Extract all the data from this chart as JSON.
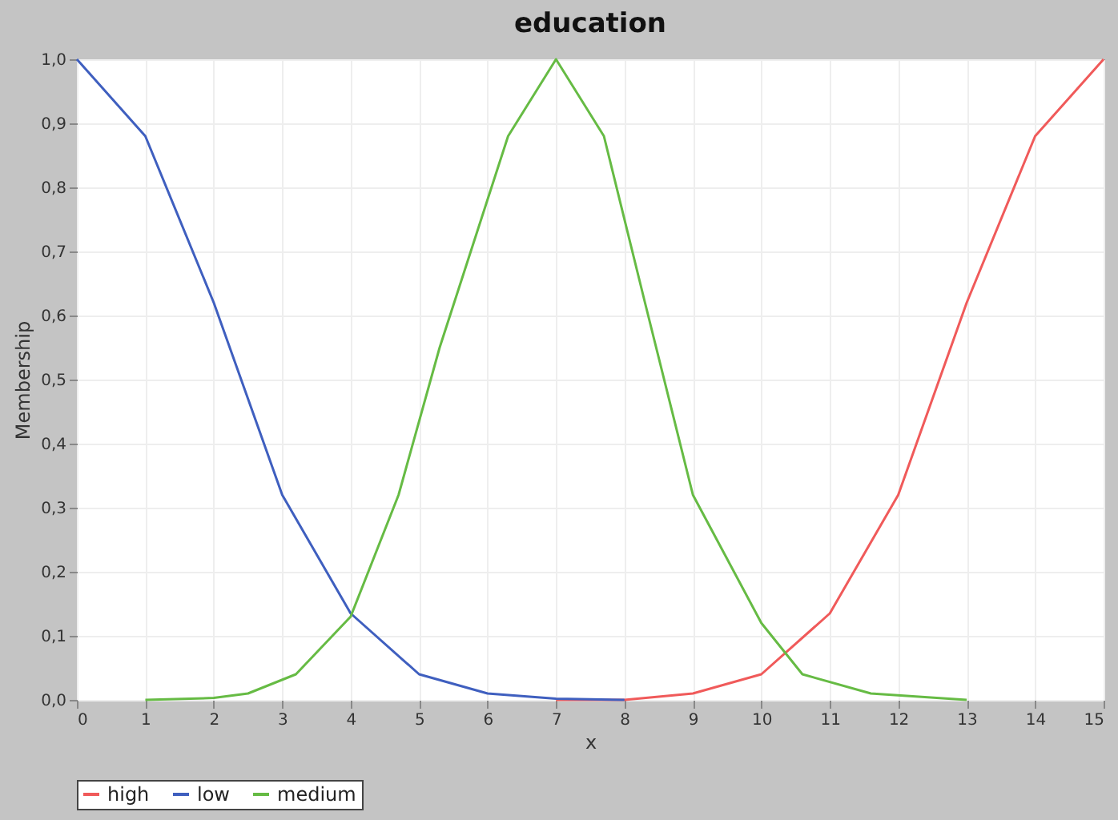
{
  "chart_data": {
    "type": "line",
    "title": "education",
    "xlabel": "x",
    "ylabel": "Membership",
    "xlim": [
      0,
      15
    ],
    "xticks": [
      0,
      1,
      2,
      3,
      4,
      5,
      6,
      7,
      8,
      9,
      10,
      11,
      12,
      13,
      14,
      15
    ],
    "ylim": [
      0,
      1
    ],
    "yticks": [
      {
        "value": 0,
        "label": "0,0"
      },
      {
        "value": 0.1,
        "label": "0,1"
      },
      {
        "value": 0.2,
        "label": "0,2"
      },
      {
        "value": 0.3,
        "label": "0,3"
      },
      {
        "value": 0.4,
        "label": "0,4"
      },
      {
        "value": 0.5,
        "label": "0,5"
      },
      {
        "value": 0.6,
        "label": "0,6"
      },
      {
        "value": 0.7,
        "label": "0,7"
      },
      {
        "value": 0.8,
        "label": "0,8"
      },
      {
        "value": 0.9,
        "label": "0,9"
      },
      {
        "value": 1,
        "label": "1,0"
      }
    ],
    "grid": true,
    "legend": "bottom",
    "series": [
      {
        "name": "high",
        "color": "#f05a5a",
        "x": [
          7,
          8,
          9,
          10,
          11,
          12,
          13,
          14,
          15
        ],
        "values": [
          0,
          0,
          0.01,
          0.04,
          0.135,
          0.32,
          0.62,
          0.88,
          1.0
        ]
      },
      {
        "name": "low",
        "color": "#3f5fbf",
        "x": [
          0,
          1,
          2,
          3,
          4,
          5,
          6,
          7,
          8
        ],
        "values": [
          1.0,
          0.88,
          0.62,
          0.32,
          0.135,
          0.04,
          0.01,
          0.002,
          0
        ]
      },
      {
        "name": "medium",
        "color": "#66bb44",
        "x": [
          1,
          2,
          2.5,
          3.2,
          4,
          4.7,
          5.3,
          6.3,
          7,
          7.7,
          8.3,
          9,
          10,
          10.6,
          11.6,
          13
        ],
        "values": [
          0,
          0.003,
          0.01,
          0.04,
          0.13,
          0.32,
          0.55,
          0.88,
          1.0,
          0.88,
          0.62,
          0.32,
          0.12,
          0.04,
          0.01,
          0
        ]
      }
    ]
  }
}
